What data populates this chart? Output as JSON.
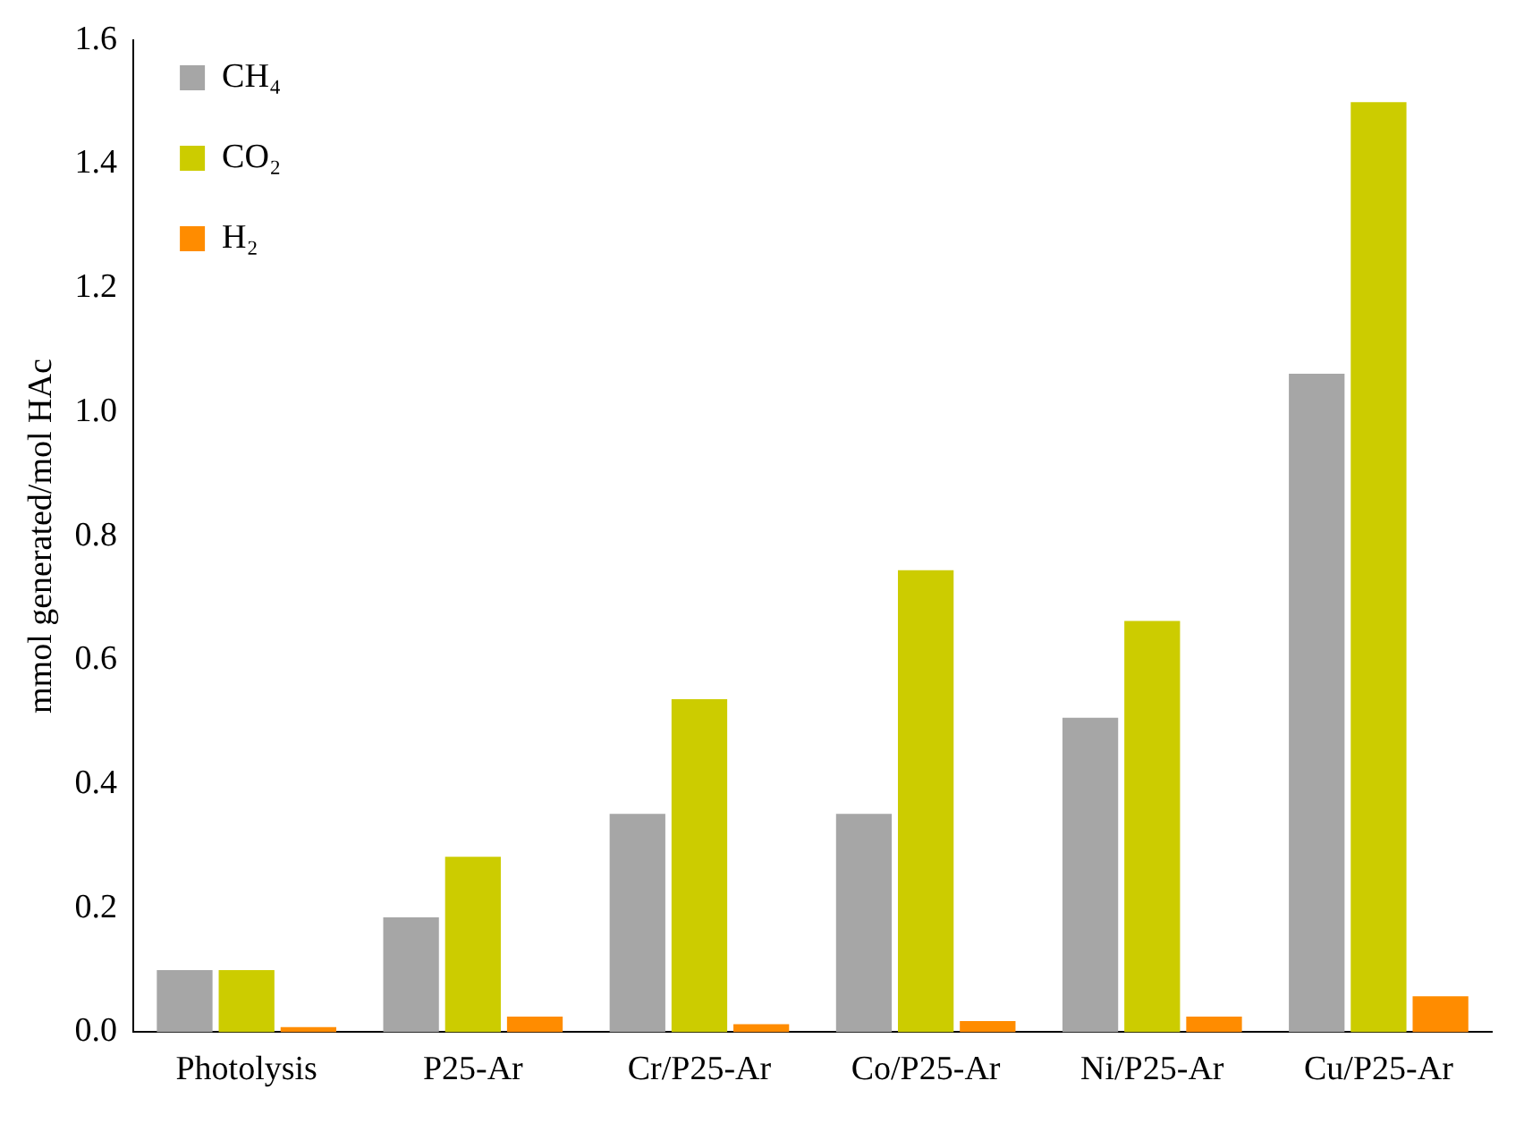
{
  "chart_data": {
    "type": "bar",
    "ylabel": "mmol generated/mol HAc",
    "categories": [
      "Photolysis",
      "P25-Ar",
      "Cr/P25-Ar",
      "Co/P25-Ar",
      "Ni/P25-Ar",
      "Cu/P25-Ar"
    ],
    "series": [
      {
        "name": "CH₄",
        "color": "#a6a6a6",
        "values": [
          0.1,
          0.185,
          0.352,
          0.352,
          0.507,
          1.062
        ]
      },
      {
        "name": "CO₂",
        "color": "#cccc00",
        "values": [
          0.1,
          0.283,
          0.537,
          0.745,
          0.663,
          1.5
        ]
      },
      {
        "name": "H₂",
        "color": "#ff8c00",
        "values": [
          0.008,
          0.025,
          0.013,
          0.018,
          0.025,
          0.058
        ]
      }
    ],
    "ylim": [
      0,
      1.6
    ],
    "yticks": [
      {
        "value": 0,
        "label": "0.0"
      },
      {
        "value": 0.2,
        "label": "0.2"
      },
      {
        "value": 0.4,
        "label": "0.4"
      },
      {
        "value": 0.6,
        "label": "0.6"
      },
      {
        "value": 0.8,
        "label": "0.8"
      },
      {
        "value": 1,
        "label": "1.0"
      },
      {
        "value": 1.2,
        "label": "1.2"
      },
      {
        "value": 1.4,
        "label": "1.4"
      },
      {
        "value": 1.6,
        "label": "1.6"
      }
    ],
    "grid": false,
    "legend": "top left"
  }
}
